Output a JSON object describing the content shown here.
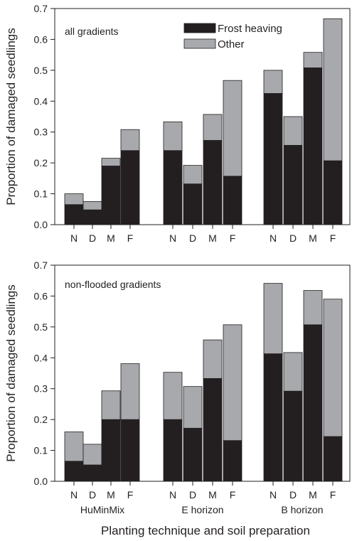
{
  "figure": {
    "xlabel": "Planting technique and soil preparation"
  },
  "legend": {
    "placement": "top-center",
    "items": [
      {
        "label": "Frost heaving",
        "color": "#231f20"
      },
      {
        "label": "Other",
        "color": "#a7a9ac"
      }
    ]
  },
  "chart_data": [
    {
      "type": "bar",
      "stacked": true,
      "panel_label": "all gradients",
      "ylabel": "Proportion of damaged seedlings",
      "ylim": [
        0,
        0.7
      ],
      "yticks": [
        0.0,
        0.1,
        0.2,
        0.3,
        0.4,
        0.5,
        0.6,
        0.7
      ],
      "groups": [
        "HuMinMix",
        "E horizon",
        "B horizon"
      ],
      "categories": [
        "N",
        "D",
        "M",
        "F",
        "N",
        "D",
        "M",
        "F",
        "N",
        "D",
        "M",
        "F"
      ],
      "series": [
        {
          "name": "Frost heaving",
          "color": "#231f20",
          "values": [
            0.065,
            0.048,
            0.19,
            0.24,
            0.24,
            0.132,
            0.273,
            0.157,
            0.425,
            0.257,
            0.508,
            0.207
          ]
        },
        {
          "name": "Other",
          "color": "#a7a9ac",
          "values": [
            0.035,
            0.027,
            0.025,
            0.068,
            0.093,
            0.06,
            0.084,
            0.31,
            0.075,
            0.093,
            0.05,
            0.46
          ]
        }
      ],
      "totals": [
        0.1,
        0.075,
        0.215,
        0.308,
        0.333,
        0.192,
        0.357,
        0.467,
        0.5,
        0.35,
        0.558,
        0.667
      ]
    },
    {
      "type": "bar",
      "stacked": true,
      "panel_label": "non-flooded gradients",
      "ylabel": "Proportion of damaged seedlings",
      "ylim": [
        0,
        0.7
      ],
      "yticks": [
        0.0,
        0.1,
        0.2,
        0.3,
        0.4,
        0.5,
        0.6,
        0.7
      ],
      "groups": [
        "HuMinMix",
        "E horizon",
        "B horizon"
      ],
      "categories": [
        "N",
        "D",
        "M",
        "F",
        "N",
        "D",
        "M",
        "F",
        "N",
        "D",
        "M",
        "F"
      ],
      "series": [
        {
          "name": "Frost heaving",
          "color": "#231f20",
          "values": [
            0.065,
            0.053,
            0.2,
            0.2,
            0.2,
            0.172,
            0.333,
            0.132,
            0.413,
            0.292,
            0.507,
            0.145
          ]
        },
        {
          "name": "Other",
          "color": "#a7a9ac",
          "values": [
            0.095,
            0.067,
            0.093,
            0.181,
            0.153,
            0.135,
            0.125,
            0.375,
            0.228,
            0.125,
            0.111,
            0.445
          ]
        }
      ],
      "totals": [
        0.16,
        0.12,
        0.293,
        0.381,
        0.353,
        0.307,
        0.458,
        0.507,
        0.641,
        0.417,
        0.618,
        0.59
      ]
    }
  ]
}
